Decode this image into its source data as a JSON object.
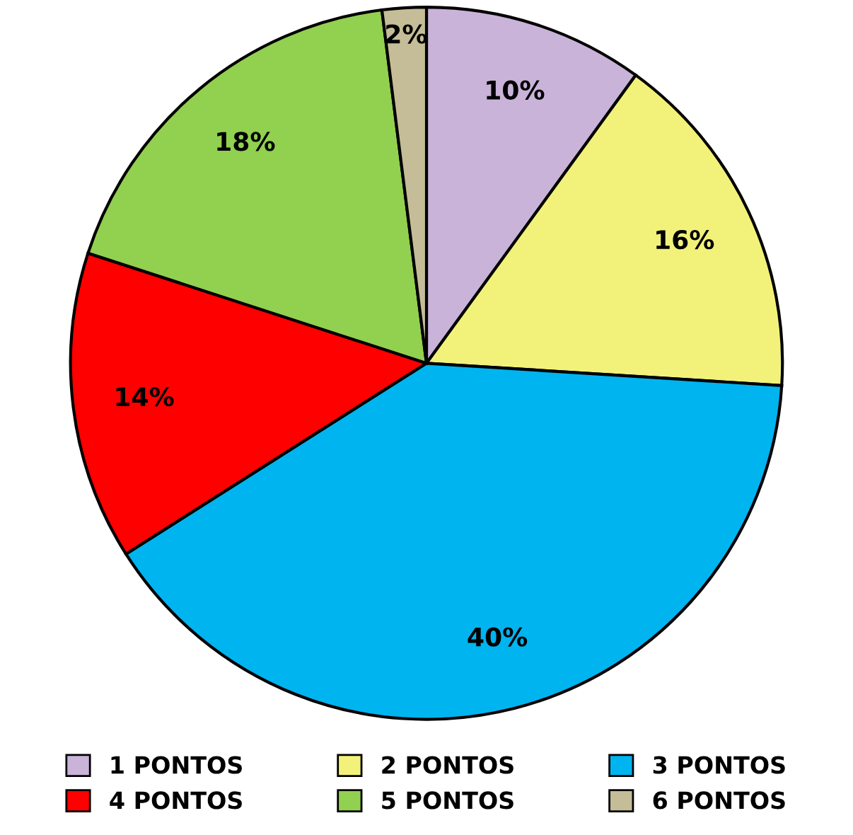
{
  "chart_data": {
    "type": "pie",
    "categories": [
      "1 PONTOS",
      "2 PONTOS",
      "3 PONTOS",
      "4 PONTOS",
      "5 PONTOS",
      "6 PONTOS"
    ],
    "values": [
      10,
      16,
      40,
      14,
      18,
      2
    ],
    "colors": [
      "#c9b3d9",
      "#f2f27a",
      "#00b4f0",
      "#ff0000",
      "#92d050",
      "#c4bd97"
    ],
    "value_labels": [
      "10%",
      "16%",
      "40%",
      "14%",
      "18%",
      "2%"
    ],
    "legend": "bottom"
  }
}
